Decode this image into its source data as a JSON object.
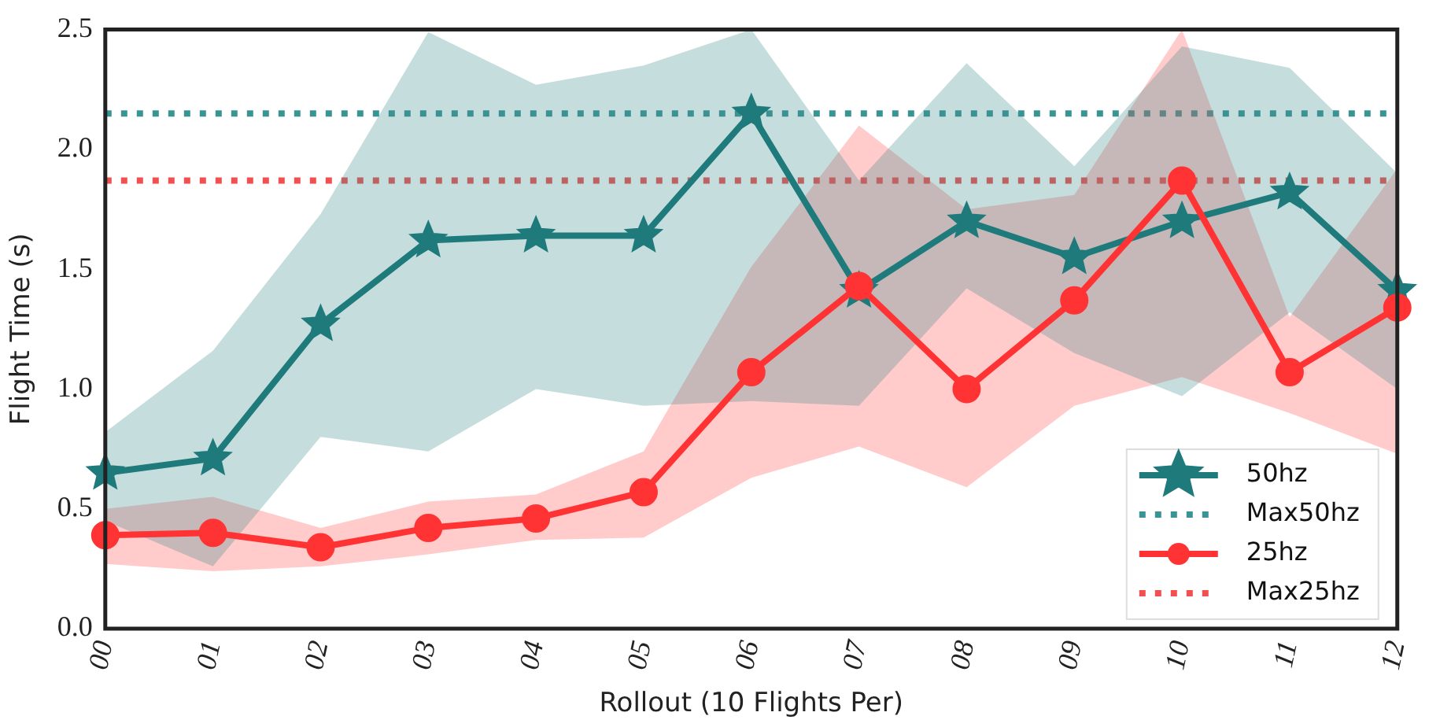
{
  "chart_data": {
    "type": "line",
    "xlabel": "Rollout (10 Flights Per)",
    "ylabel": "Flight Time (s)",
    "categories": [
      "00",
      "01",
      "02",
      "03",
      "04",
      "05",
      "06",
      "07",
      "08",
      "09",
      "10",
      "11",
      "12"
    ],
    "series": [
      {
        "name": "50hz",
        "color": "#1f7b7b",
        "marker": "star",
        "values": [
          0.65,
          0.71,
          1.27,
          1.62,
          1.64,
          1.64,
          2.15,
          1.41,
          1.7,
          1.55,
          1.7,
          1.82,
          1.41
        ],
        "lower": [
          0.45,
          0.26,
          0.8,
          0.74,
          1.0,
          0.93,
          0.95,
          0.93,
          1.42,
          1.15,
          0.97,
          1.32,
          1.0
        ],
        "upper": [
          0.82,
          1.16,
          1.73,
          2.49,
          2.27,
          2.35,
          2.5,
          1.87,
          2.36,
          1.93,
          2.43,
          2.34,
          1.9
        ]
      },
      {
        "name": "25hz",
        "color": "#ff3333",
        "marker": "circle",
        "values": [
          0.39,
          0.4,
          0.34,
          0.42,
          0.46,
          0.57,
          1.07,
          1.43,
          1.0,
          1.37,
          1.87,
          1.07,
          1.34
        ],
        "lower": [
          0.27,
          0.24,
          0.26,
          0.31,
          0.37,
          0.38,
          0.63,
          0.76,
          0.59,
          0.93,
          1.05,
          0.9,
          0.73
        ],
        "upper": [
          0.5,
          0.55,
          0.42,
          0.53,
          0.56,
          0.74,
          1.51,
          2.1,
          1.75,
          1.81,
          2.5,
          1.3,
          1.92
        ]
      }
    ],
    "ref_lines": [
      {
        "axis": "y",
        "value": 2.15,
        "label": "Max50hz",
        "color": "#3a9494",
        "line_style": "dotted"
      },
      {
        "axis": "y",
        "value": 1.87,
        "label": "Max25hz",
        "color": "#f05050",
        "line_style": "dotted"
      }
    ],
    "ylim": [
      0,
      2.5
    ],
    "yticks": [
      {
        "value": 0,
        "label": "0.0"
      },
      0.5,
      {
        "value": 1,
        "label": "1.0"
      },
      1.5,
      {
        "value": 2,
        "label": "2.0"
      },
      2.5
    ],
    "grid": false,
    "legend": "bottom right",
    "line_style": "solid"
  }
}
